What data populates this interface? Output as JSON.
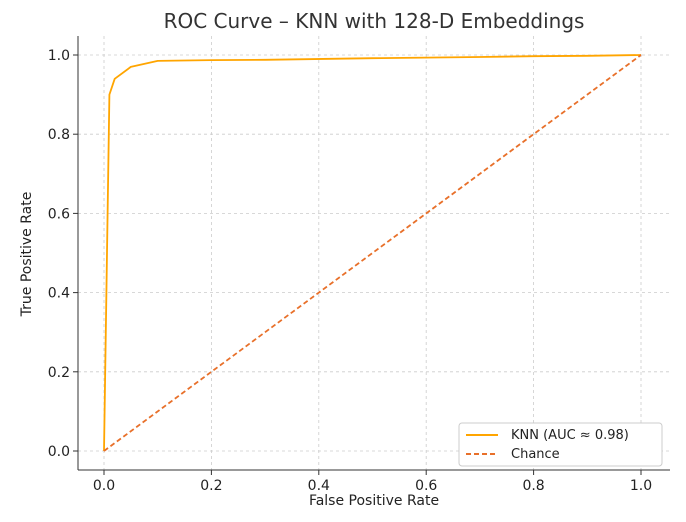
{
  "chart_data": {
    "type": "line",
    "title": "ROC Curve – KNN with 128-D Embeddings",
    "xlabel": "False Positive Rate",
    "ylabel": "True Positive Rate",
    "xlim": [
      0.0,
      1.0
    ],
    "ylim": [
      0.0,
      1.0
    ],
    "grid": true,
    "legend_position": "bottom-right",
    "x_ticks": [
      0.0,
      0.2,
      0.4,
      0.6,
      0.8,
      1.0
    ],
    "y_ticks": [
      0.0,
      0.2,
      0.4,
      0.6,
      0.8,
      1.0
    ],
    "x_tick_labels": [
      "0.0",
      "0.2",
      "0.4",
      "0.6",
      "0.8",
      "1.0"
    ],
    "y_tick_labels": [
      "0.0",
      "0.2",
      "0.4",
      "0.6",
      "0.8",
      "1.0"
    ],
    "series": [
      {
        "name": "KNN (AUC ≈ 0.98)",
        "color": "#ffa500",
        "style": "solid",
        "x": [
          0.0,
          0.01,
          0.02,
          0.05,
          0.1,
          0.2,
          0.3,
          0.5,
          0.7,
          0.8,
          0.9,
          1.0
        ],
        "y": [
          0.0,
          0.9,
          0.94,
          0.97,
          0.985,
          0.987,
          0.988,
          0.992,
          0.995,
          0.997,
          0.998,
          1.0
        ]
      },
      {
        "name": "Chance",
        "color": "#e8702a",
        "style": "dashed",
        "x": [
          0.0,
          1.0
        ],
        "y": [
          0.0,
          1.0
        ]
      }
    ]
  }
}
